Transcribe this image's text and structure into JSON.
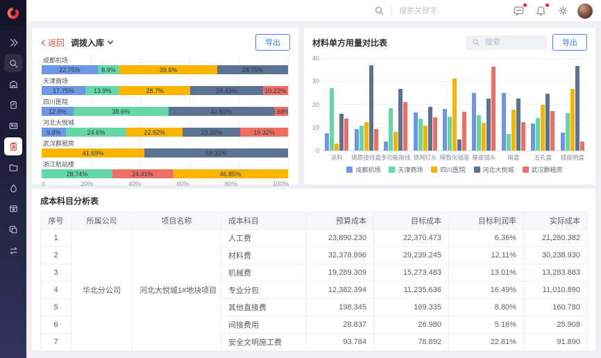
{
  "topbar": {
    "search_placeholder": "搜索关键字",
    "icons": [
      {
        "icon": "message-icon",
        "badge": true
      },
      {
        "icon": "bell-icon",
        "badge": true
      },
      {
        "icon": "gear-icon",
        "badge": false
      }
    ]
  },
  "sidebar": {
    "items": [
      {
        "icon": "expand-icon",
        "active": false,
        "boxed": false
      },
      {
        "icon": "search-icon",
        "active": false,
        "boxed": true
      },
      {
        "icon": "building-icon",
        "active": false,
        "boxed": false
      },
      {
        "icon": "clipboard-edit-icon",
        "active": false,
        "boxed": false
      },
      {
        "icon": "id-card-icon",
        "active": false,
        "boxed": false
      },
      {
        "icon": "inventory-icon",
        "active": true,
        "boxed": false
      },
      {
        "icon": "folder-icon",
        "active": false,
        "boxed": false
      },
      {
        "icon": "droplet-icon",
        "active": false,
        "boxed": false
      },
      {
        "icon": "device-settings-icon",
        "active": false,
        "boxed": false
      },
      {
        "icon": "copy-icon",
        "active": false,
        "boxed": false
      },
      {
        "icon": "transfer-icon",
        "active": false,
        "boxed": false
      }
    ]
  },
  "left_panel": {
    "back_label": "返回",
    "title": "调拨入库",
    "export_label": "导出"
  },
  "right_panel": {
    "title": "材料单方用量对比表",
    "search_placeholder": "搜索",
    "export_label": "导出"
  },
  "colors": {
    "accent_blue": "#4a7dff",
    "back_red": "#f0503c",
    "logo_red": "#e8432e"
  },
  "chart_data": [
    {
      "type": "bar",
      "stacked": true,
      "orientation": "horizontal",
      "x_ticks": [
        "0",
        "20%",
        "40%",
        "60%",
        "80%",
        "100%"
      ],
      "legend": [
        {
          "name": "人工费",
          "color": "#6b97e5"
        },
        {
          "name": "材料费",
          "color": "#65d6a5"
        },
        {
          "name": "机械费",
          "color": "#f7b500"
        },
        {
          "name": "其他直接费",
          "color": "#5b7295"
        },
        {
          "name": "分包成本",
          "color": "#ee6e62"
        }
      ],
      "rows": [
        {
          "category": "成都机场",
          "segments": [
            {
              "series": "人工费",
              "value": 22.75
            },
            {
              "series": "材料费",
              "value": 8.9
            },
            {
              "series": "机械费",
              "value": 39.6
            },
            {
              "series": "其他直接费",
              "value": 28.75
            }
          ]
        },
        {
          "category": "天津商场",
          "segments": [
            {
              "series": "人工费",
              "value": 17.75
            },
            {
              "series": "材料费",
              "value": 13.9
            },
            {
              "series": "机械费",
              "value": 28.7
            },
            {
              "series": "其他直接费",
              "value": 29.43
            },
            {
              "series": "分包成本",
              "value": 10.22
            }
          ]
        },
        {
          "category": "四川医院",
          "segments": [
            {
              "series": "人工费",
              "value": 12.9
            },
            {
              "series": "材料费",
              "value": 38.6
            },
            {
              "series": "其他直接费",
              "value": 42.82
            },
            {
              "series": "分包成本",
              "value": 5.68
            }
          ]
        },
        {
          "category": "河北大悦城",
          "segments": [
            {
              "series": "人工费",
              "value": 9.8
            },
            {
              "series": "材料费",
              "value": 24.6
            },
            {
              "series": "机械费",
              "value": 22.92
            },
            {
              "series": "其他直接费",
              "value": 23.36
            },
            {
              "series": "分包成本",
              "value": 19.32
            }
          ]
        },
        {
          "category": "武汉群租房",
          "segments": [
            {
              "series": "机械费",
              "value": 41.69
            },
            {
              "series": "其他直接费",
              "value": 58.31
            }
          ]
        },
        {
          "category": "浙江航站楼",
          "segments": [
            {
              "series": "材料费",
              "value": 28.74
            },
            {
              "series": "分包成本",
              "value": 24.41
            },
            {
              "series": "机械费",
              "value": 46.85
            }
          ]
        }
      ]
    },
    {
      "type": "bar",
      "grouped": true,
      "title": "材料单方用量对比表",
      "ylim": [
        0,
        40
      ],
      "y_ticks": [
        40,
        30,
        20,
        10,
        0
      ],
      "categories": [
        "涂料",
        "钢质接线盒",
        "多功能拖线",
        "铁网灯头",
        "模数化插座",
        "橡皮插头",
        "暗盒",
        "五孔盒",
        "插座明盒"
      ],
      "series": [
        {
          "name": "成都机场",
          "color": "#6b97e5",
          "values": [
            7.5,
            9.3,
            3.9,
            16.7,
            18.1,
            25.0,
            25.2,
            11.8,
            7.9
          ]
        },
        {
          "name": "天津商场",
          "color": "#65d6a5",
          "values": [
            27.3,
            11.0,
            18.4,
            13.9,
            14.7,
            15.5,
            7.4,
            14.1,
            16.5
          ]
        },
        {
          "name": "四川医院",
          "color": "#f7b500",
          "values": [
            3.0,
            12.5,
            8.1,
            11.0,
            31.5,
            12.2,
            17.8,
            20.0,
            27.1
          ]
        },
        {
          "name": "河北大悦城",
          "color": "#5b7295",
          "values": [
            16.0,
            37.2,
            27.1,
            19.0,
            4.8,
            22.6,
            22.6,
            24.7,
            37.0
          ]
        },
        {
          "name": "武汉群租房",
          "color": "#ee6e62",
          "values": [
            13.8,
            9.4,
            21.3,
            14.5,
            17.0,
            36.6,
            12.4,
            17.2,
            3.9
          ]
        }
      ]
    }
  ],
  "table": {
    "title": "成本科目分析表",
    "columns": [
      "序号",
      "所属公司",
      "项目名称",
      "成本科目",
      "预算成本",
      "目标成本",
      "目标利润率",
      "实际成本"
    ],
    "company": "华北分公司",
    "project": "河北大悦城1#地块项目",
    "rows": [
      {
        "seq": "1",
        "subject": "人工费",
        "budget": "23,890.230",
        "target": "22,370.473",
        "margin": "6.36%",
        "actual": "21,280.382"
      },
      {
        "seq": "2",
        "subject": "材料费",
        "budget": "32,378.896",
        "target": "29,239.245",
        "margin": "12.11%",
        "actual": "30,238.930"
      },
      {
        "seq": "3",
        "subject": "机械费",
        "budget": "19,289.309",
        "target": "15,273.483",
        "margin": "13.01%",
        "actual": "13,283.883"
      },
      {
        "seq": "4",
        "subject": "专业分包",
        "budget": "12,382.394",
        "target": "11,235.636",
        "margin": "16.49%",
        "actual": "11,010.890"
      },
      {
        "seq": "5",
        "subject": "其他直接费",
        "budget": "198.345",
        "target": "169.335",
        "margin": "8.80%",
        "actual": "160.780"
      },
      {
        "seq": "6",
        "subject": "间接费用",
        "budget": "28.837",
        "target": "26.980",
        "margin": "5.16%",
        "actual": "25.908"
      },
      {
        "seq": "7",
        "subject": "安全文明施工费",
        "budget": "93.784",
        "target": "78.892",
        "margin": "22.81%",
        "actual": "91.890"
      }
    ]
  }
}
